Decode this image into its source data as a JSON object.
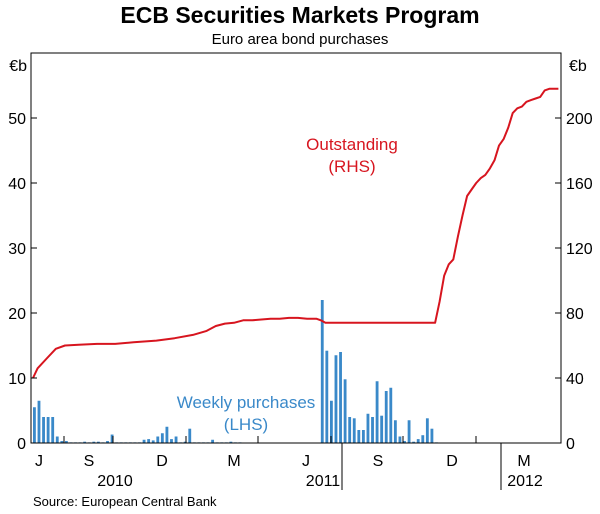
{
  "title": "ECB Securities Markets Program",
  "subtitle": "Euro area bond purchases",
  "source": "Source: European Central Bank",
  "chart_data": {
    "type": "bar+line",
    "left_unit": "€b",
    "right_unit": "€b",
    "y_left": {
      "min": 0,
      "max": 60,
      "ticks": [
        0,
        10,
        20,
        30,
        40,
        50
      ]
    },
    "y_right": {
      "min": 0,
      "max": 240,
      "ticks": [
        0,
        40,
        80,
        120,
        160,
        200
      ]
    },
    "grid": false,
    "x_month_labels": [
      "J",
      "S",
      "D",
      "M",
      "J",
      "S",
      "D",
      "M"
    ],
    "x_year_labels": [
      "2010",
      "2011",
      "2012"
    ],
    "annotations": [
      {
        "id": "outstanding",
        "lines": [
          "Outstanding",
          "(RHS)"
        ],
        "color": "#d7151f"
      },
      {
        "id": "weekly",
        "lines": [
          "Weekly purchases",
          "(LHS)"
        ],
        "color": "#3a89c9"
      }
    ],
    "colors": {
      "bars": "#3a89c9",
      "line": "#d7151f"
    },
    "series": [
      {
        "name": "Weekly purchases",
        "axis": "left",
        "type": "bar",
        "values": [
          5.5,
          6.5,
          4.0,
          4.0,
          4.0,
          1.0,
          0.3,
          0.3,
          0.1,
          0.1,
          0.1,
          0.2,
          0.1,
          0.2,
          0.2,
          0.1,
          0.3,
          1.3,
          0.1,
          0.1,
          0.1,
          0.1,
          0.1,
          0.1,
          0.5,
          0.6,
          0.4,
          1.0,
          1.5,
          2.5,
          0.6,
          1.0,
          0.1,
          0.2,
          2.2,
          0.1,
          0.1,
          0.1,
          0.1,
          0.5,
          0.1,
          0.1,
          0.1,
          0.2,
          0.1,
          0.1,
          0,
          0,
          0,
          0,
          0,
          0,
          0,
          0,
          0,
          0,
          0,
          0,
          0,
          0,
          0,
          0,
          0,
          22.0,
          14.2,
          6.5,
          13.5,
          14.0,
          9.8,
          4.0,
          3.8,
          2.0,
          2.0,
          4.5,
          4.0,
          9.5,
          4.2,
          8.0,
          8.5,
          3.5,
          1.0,
          0.3,
          3.5,
          0.2,
          0.6,
          1.2,
          3.8,
          2.2,
          0.1,
          0,
          0,
          0,
          0,
          0,
          0,
          0,
          0
        ]
      },
      {
        "name": "Outstanding",
        "axis": "right",
        "type": "line",
        "points": [
          [
            0,
            40
          ],
          [
            1,
            46
          ],
          [
            3,
            52
          ],
          [
            5,
            58
          ],
          [
            7,
            60
          ],
          [
            10,
            60.5
          ],
          [
            14,
            61
          ],
          [
            18,
            61
          ],
          [
            22,
            62
          ],
          [
            27,
            63
          ],
          [
            31,
            64.5
          ],
          [
            35,
            66.5
          ],
          [
            38,
            69
          ],
          [
            40,
            72
          ],
          [
            42,
            73.5
          ],
          [
            44,
            74
          ],
          [
            46,
            75.5
          ],
          [
            48,
            75.5
          ],
          [
            50,
            76
          ],
          [
            52,
            76.5
          ],
          [
            54,
            76.5
          ],
          [
            56,
            77
          ],
          [
            58,
            77
          ],
          [
            60,
            76.5
          ],
          [
            62,
            76.5
          ],
          [
            63,
            75.5
          ],
          [
            64,
            74
          ],
          [
            66,
            74
          ],
          [
            68,
            74
          ],
          [
            70,
            74
          ],
          [
            72,
            74
          ],
          [
            74,
            74
          ],
          [
            76,
            74
          ],
          [
            78,
            74
          ],
          [
            80,
            74
          ],
          [
            82,
            74
          ],
          [
            84,
            74
          ],
          [
            86,
            74
          ],
          [
            88,
            74
          ],
          [
            89,
            87
          ],
          [
            90,
            103
          ],
          [
            91,
            110
          ],
          [
            92,
            113
          ],
          [
            93,
            127
          ],
          [
            94,
            140
          ],
          [
            95,
            152
          ],
          [
            96,
            156
          ],
          [
            97,
            160
          ],
          [
            98,
            163
          ],
          [
            99,
            165
          ],
          [
            100,
            169
          ],
          [
            101,
            174
          ],
          [
            102,
            183
          ],
          [
            103,
            187
          ],
          [
            104,
            194
          ],
          [
            105,
            203
          ],
          [
            106,
            206
          ],
          [
            107,
            207
          ],
          [
            108,
            210
          ],
          [
            109,
            211
          ],
          [
            110,
            212
          ],
          [
            111,
            213
          ],
          [
            112,
            217
          ],
          [
            113,
            218
          ],
          [
            114,
            218
          ],
          [
            115,
            218
          ]
        ]
      }
    ]
  }
}
